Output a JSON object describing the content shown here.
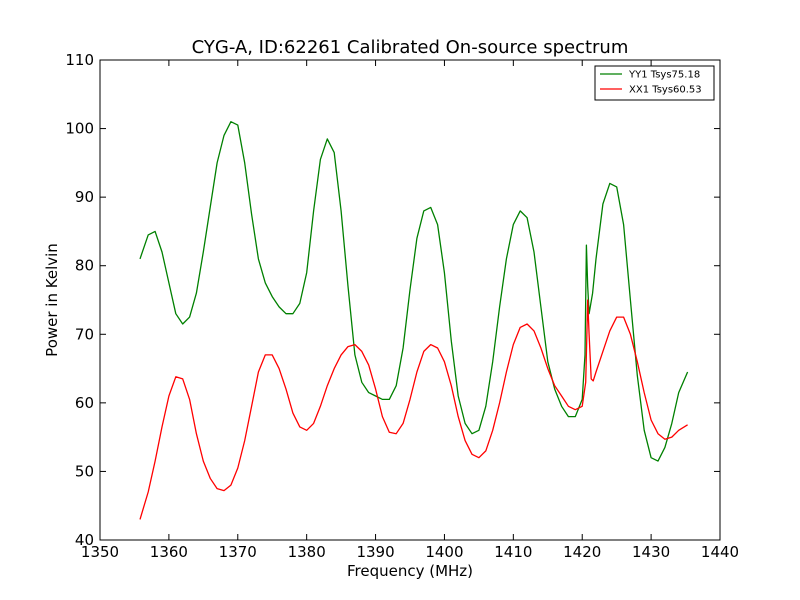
{
  "chart_data": {
    "type": "line",
    "title": "CYG-A, ID:62261 Calibrated On-source spectrum",
    "xlabel": "Frequency (MHz)",
    "ylabel": "Power in Kelvin",
    "xlim": [
      1350,
      1440
    ],
    "ylim": [
      40,
      110
    ],
    "xticks": [
      1350,
      1360,
      1370,
      1380,
      1390,
      1400,
      1410,
      1420,
      1430,
      1440
    ],
    "yticks": [
      40,
      50,
      60,
      70,
      80,
      90,
      100,
      110
    ],
    "grid": false,
    "legend_position": "top-right",
    "series": [
      {
        "name": "YY1 Tsys75.18",
        "color": "#008000",
        "x": [
          1355.8,
          1357,
          1358,
          1359,
          1360,
          1361,
          1362,
          1363,
          1364,
          1365,
          1366,
          1367,
          1368,
          1369,
          1370,
          1371,
          1372,
          1373,
          1374,
          1375,
          1376,
          1377,
          1378,
          1379,
          1380,
          1381,
          1382,
          1383,
          1384,
          1385,
          1386,
          1387,
          1388,
          1389,
          1390,
          1391,
          1392,
          1393,
          1394,
          1395,
          1396,
          1397,
          1398,
          1399,
          1400,
          1401,
          1402,
          1403,
          1404,
          1405,
          1406,
          1407,
          1408,
          1409,
          1410,
          1411,
          1412,
          1413,
          1414,
          1415,
          1416,
          1417,
          1418,
          1419,
          1420,
          1420.4,
          1420.6,
          1420.8,
          1421,
          1421.5,
          1422,
          1423,
          1424,
          1425,
          1426,
          1427,
          1428,
          1429,
          1430,
          1431,
          1432,
          1433,
          1434,
          1435.3
        ],
        "y": [
          81,
          84.5,
          85,
          82,
          77.5,
          73,
          71.5,
          72.5,
          76,
          82,
          88.5,
          95,
          99,
          101,
          100.5,
          95,
          87.5,
          81,
          77.5,
          75.5,
          74,
          73,
          73,
          74.5,
          79,
          88,
          95.5,
          98.5,
          96.5,
          88,
          77,
          67,
          63,
          61.5,
          61,
          60.5,
          60.5,
          62.5,
          68,
          76.5,
          84,
          88,
          88.5,
          86,
          79,
          69,
          61,
          57,
          55.5,
          56,
          59.5,
          66,
          74,
          81,
          86,
          88,
          87,
          82,
          74,
          66,
          62,
          59.5,
          58,
          58,
          60.5,
          67,
          83,
          77,
          73,
          76,
          81,
          89,
          92,
          91.5,
          86,
          75,
          64,
          56,
          52,
          51.5,
          53.5,
          57,
          61.5,
          64.5
        ]
      },
      {
        "name": "XX1 Tsys60.53",
        "color": "#ff0000",
        "x": [
          1355.8,
          1357,
          1358,
          1359,
          1360,
          1361,
          1362,
          1363,
          1364,
          1365,
          1366,
          1367,
          1368,
          1369,
          1370,
          1371,
          1372,
          1373,
          1374,
          1375,
          1376,
          1377,
          1378,
          1379,
          1380,
          1381,
          1382,
          1383,
          1384,
          1385,
          1386,
          1387,
          1388,
          1389,
          1390,
          1391,
          1392,
          1393,
          1394,
          1395,
          1396,
          1397,
          1398,
          1399,
          1400,
          1401,
          1402,
          1403,
          1404,
          1405,
          1406,
          1407,
          1408,
          1409,
          1410,
          1411,
          1412,
          1413,
          1414,
          1415,
          1416,
          1417,
          1418,
          1419,
          1420,
          1420.5,
          1420.8,
          1421,
          1421.3,
          1421.6,
          1422,
          1423,
          1424,
          1425,
          1426,
          1427,
          1428,
          1429,
          1430,
          1431,
          1432,
          1433,
          1434,
          1435.3
        ],
        "y": [
          43,
          47,
          51.5,
          56.5,
          61,
          63.8,
          63.5,
          60.5,
          55.5,
          51.5,
          49,
          47.5,
          47.2,
          48,
          50.5,
          54.5,
          59.5,
          64.5,
          67,
          67,
          65,
          62,
          58.5,
          56.5,
          56,
          57,
          59.5,
          62.5,
          65,
          67,
          68.2,
          68.5,
          67.5,
          65.5,
          62,
          58,
          55.7,
          55.5,
          57,
          60.5,
          64.5,
          67.5,
          68.5,
          68,
          66,
          62.5,
          58,
          54.5,
          52.5,
          52,
          53,
          56,
          60,
          64.5,
          68.5,
          71,
          71.5,
          70.5,
          68,
          65,
          62.5,
          61,
          59.5,
          59,
          59.5,
          63,
          75,
          70,
          63.5,
          63.2,
          64.5,
          67.5,
          70.5,
          72.5,
          72.5,
          70,
          66,
          61.5,
          57.5,
          55.5,
          54.7,
          55,
          56,
          56.8
        ]
      }
    ]
  }
}
